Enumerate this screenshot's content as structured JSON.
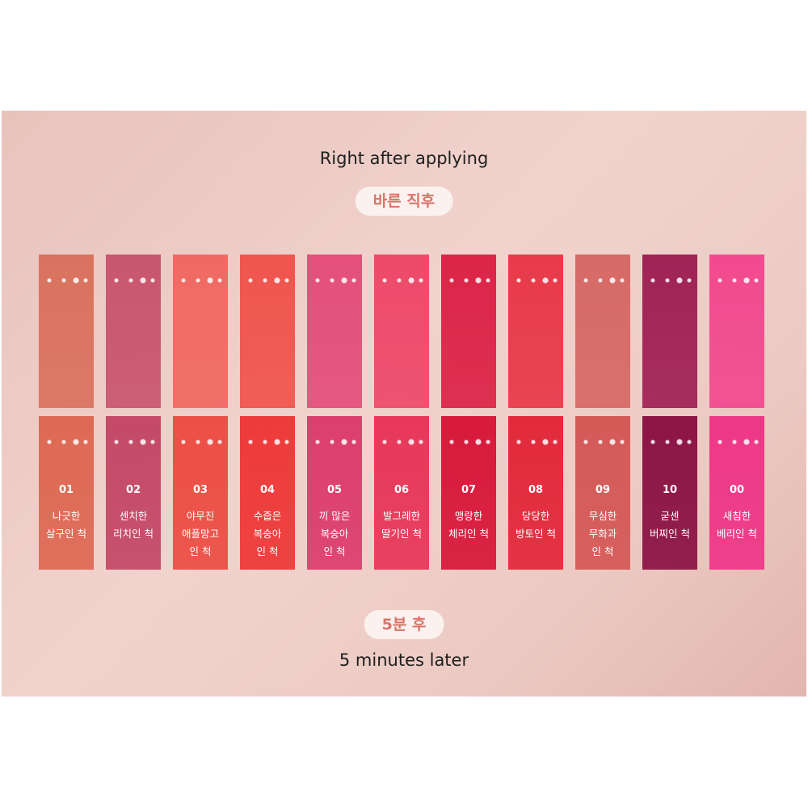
{
  "top_caption": "Right after applying",
  "top_pill": "바른 직후",
  "bottom_pill": "5분 후",
  "bottom_caption": "5 minutes later",
  "swatches": [
    {
      "number": "01",
      "name": [
        "나긋한",
        "살구인 척"
      ],
      "color_top": "#d9735f",
      "color_bottom": "#de6a55"
    },
    {
      "number": "02",
      "name": [
        "센치한",
        "리치인 척"
      ],
      "color_top": "#c9566f",
      "color_bottom": "#c44a68"
    },
    {
      "number": "03",
      "name": [
        "야무진",
        "애플망고",
        "인 척"
      ],
      "color_top": "#f06a62",
      "color_bottom": "#ec4f45"
    },
    {
      "number": "04",
      "name": [
        "수줍은",
        "복숭아",
        "인 척"
      ],
      "color_top": "#f0554f",
      "color_bottom": "#ee3a3a"
    },
    {
      "number": "05",
      "name": [
        "끼 많은",
        "복숭아",
        "인 척"
      ],
      "color_top": "#e4507a",
      "color_bottom": "#dc3f6d"
    },
    {
      "number": "06",
      "name": [
        "발그레한",
        "딸기인 척"
      ],
      "color_top": "#ee4a6a",
      "color_bottom": "#e8385a"
    },
    {
      "number": "07",
      "name": [
        "맹랑한",
        "체리인 척"
      ],
      "color_top": "#dc2548",
      "color_bottom": "#d81a3c"
    },
    {
      "number": "08",
      "name": [
        "당당한",
        "방토인 척"
      ],
      "color_top": "#e83a4a",
      "color_bottom": "#e22a3c"
    },
    {
      "number": "09",
      "name": [
        "무심한",
        "무화과",
        "인 척"
      ],
      "color_top": "#d66a66",
      "color_bottom": "#d45a58"
    },
    {
      "number": "10",
      "name": [
        "굳센",
        "버찌인 척"
      ],
      "color_top": "#a02356",
      "color_bottom": "#8c1545"
    },
    {
      "number": "00",
      "name": [
        "새침한",
        "베리인 척"
      ],
      "color_top": "#f24a90",
      "color_bottom": "#ee3888"
    }
  ]
}
